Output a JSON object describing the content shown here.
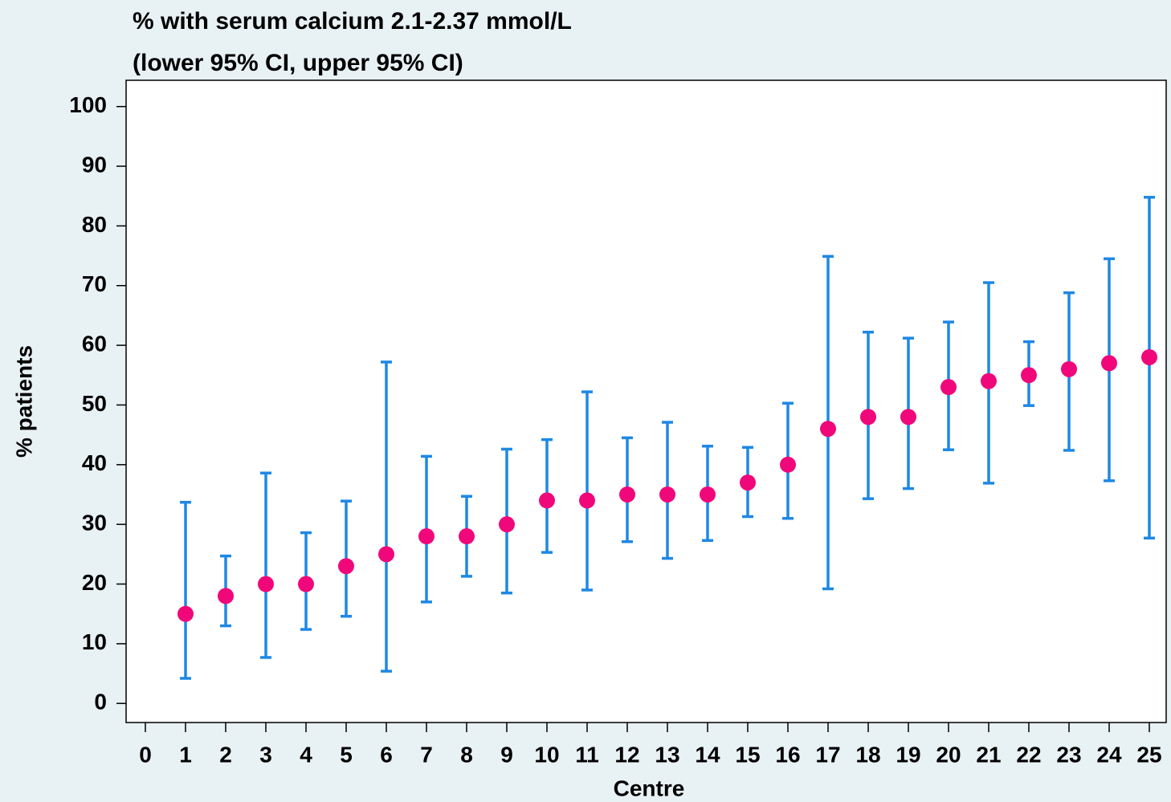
{
  "chart_data": {
    "type": "scatter",
    "title": "% with serum calcium 2.1-2.37 mmol/L",
    "subtitle": "(lower 95% CI, upper 95% CI)",
    "x_label": "Centre",
    "y_label": "% patients",
    "x": [
      1,
      2,
      3,
      4,
      5,
      6,
      7,
      8,
      9,
      10,
      11,
      12,
      13,
      14,
      15,
      16,
      17,
      18,
      19,
      20,
      21,
      22,
      23,
      24,
      25
    ],
    "values": [
      15,
      18,
      20,
      20,
      23,
      25,
      28,
      28,
      30,
      34,
      34,
      35,
      35,
      35,
      37,
      40,
      46,
      48,
      48,
      53,
      54,
      55,
      56,
      57,
      58
    ],
    "lower": [
      4.2,
      13,
      7.7,
      12.4,
      14.6,
      5.4,
      17,
      21.3,
      18.5,
      25.3,
      19,
      27.1,
      24.3,
      27.3,
      31.3,
      31,
      19.2,
      34.3,
      36,
      42.5,
      36.9,
      49.9,
      42.4,
      37.3,
      27.7
    ],
    "upper": [
      33.7,
      24.7,
      38.6,
      28.6,
      33.9,
      57.2,
      41.4,
      34.7,
      42.6,
      44.2,
      52.2,
      44.5,
      47.1,
      43.1,
      42.9,
      50.3,
      74.9,
      62.2,
      61.2,
      63.9,
      70.5,
      60.6,
      68.8,
      74.5,
      84.8
    ],
    "color": "#f0087a",
    "error_color": "#1e88e5",
    "xlim": [
      -0.48,
      25.42
    ],
    "xticks": [
      0,
      1,
      2,
      3,
      4,
      5,
      6,
      7,
      8,
      9,
      10,
      11,
      12,
      13,
      14,
      15,
      16,
      17,
      18,
      19,
      20,
      21,
      22,
      23,
      24,
      25
    ],
    "ylim": [
      -3.2,
      104.4
    ],
    "yticks": [
      0,
      10,
      20,
      30,
      40,
      50,
      60,
      70,
      80,
      90,
      100
    ]
  }
}
